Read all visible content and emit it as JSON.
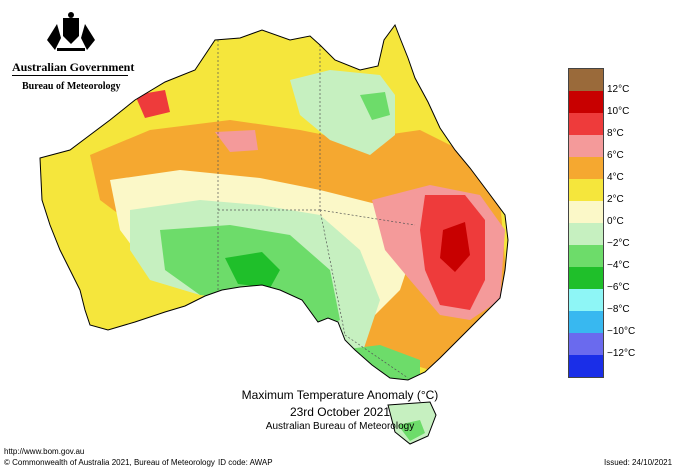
{
  "branding": {
    "government": "Australian Government",
    "bureau": "Bureau of Meteorology"
  },
  "map": {
    "title": "Maximum Temperature Anomaly (°C)",
    "date": "23rd October 2021",
    "agency": "Australian Bureau of Meteorology"
  },
  "legend": {
    "items": [
      {
        "label": "12°C",
        "color": "#9a6a3a"
      },
      {
        "label": "10°C",
        "color": "#c80000"
      },
      {
        "label": "8°C",
        "color": "#ee3b3b"
      },
      {
        "label": "6°C",
        "color": "#f49a9a"
      },
      {
        "label": "4°C",
        "color": "#f5a830"
      },
      {
        "label": "2°C",
        "color": "#f5e63c"
      },
      {
        "label": "0°C",
        "color": "#fbf8c8"
      },
      {
        "label": "−2°C",
        "color": "#c6f0c0"
      },
      {
        "label": "−4°C",
        "color": "#6ddc6a"
      },
      {
        "label": "−6°C",
        "color": "#1fbf2a"
      },
      {
        "label": "−8°C",
        "color": "#8ef6f6"
      },
      {
        "label": "−10°C",
        "color": "#38b8f0"
      },
      {
        "label": "−12°C",
        "color": "#6a6aee"
      },
      {
        "label": "",
        "color": "#1a2ee8"
      }
    ]
  },
  "footer": {
    "url": "http://www.bom.gov.au",
    "copyright": "© Commonwealth of Australia 2021, Bureau of Meteorology",
    "id_code": "ID code: AWAP",
    "issued": "Issued: 24/10/2021"
  }
}
